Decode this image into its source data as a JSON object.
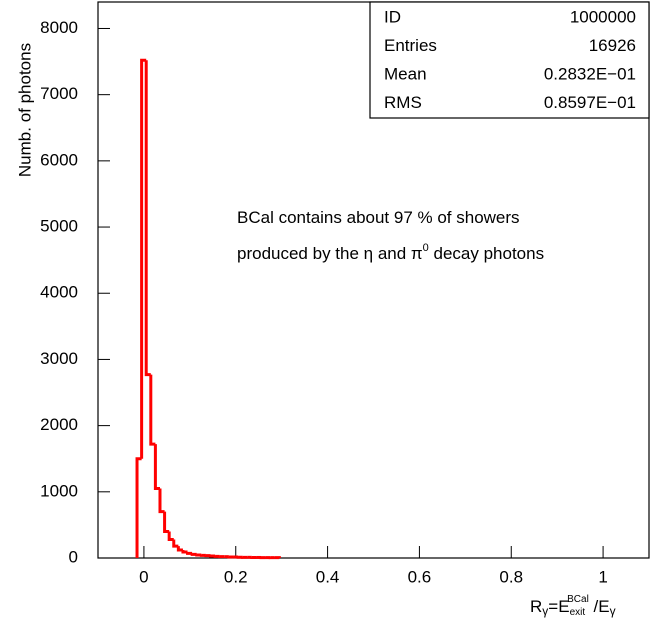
{
  "chart_data": {
    "type": "histogram",
    "ylabel": "Numb. of photons",
    "xlabel": [
      "R",
      "γ",
      "=E",
      "exit",
      "BCal",
      " /E",
      "γ"
    ],
    "annotations": [
      [
        "BCal contains about 97 % of showers"
      ],
      [
        "produced by the η and π",
        "0",
        " decay photons"
      ]
    ],
    "stats": [
      [
        "ID",
        "1000000"
      ],
      [
        "Entries",
        "16926"
      ],
      [
        "Mean",
        "0.2832E−01"
      ],
      [
        "RMS",
        "0.8597E−01"
      ]
    ],
    "bins": [
      -0.015,
      -0.005,
      0.005,
      0.015,
      0.025,
      0.035,
      0.045,
      0.055,
      0.065,
      0.075,
      0.085,
      0.095,
      0.105,
      0.115,
      0.125,
      0.135,
      0.145,
      0.155,
      0.165,
      0.175,
      0.185,
      0.195,
      0.205,
      0.215,
      0.225,
      0.235,
      0.245,
      0.255,
      0.265,
      0.275,
      0.285,
      0.295
    ],
    "counts": [
      1500,
      7520,
      2770,
      1720,
      1050,
      700,
      400,
      280,
      180,
      120,
      90,
      70,
      55,
      45,
      40,
      35,
      30,
      25,
      20,
      20,
      15,
      15,
      12,
      10,
      10,
      8,
      8,
      6,
      6,
      5,
      5
    ],
    "color": "#ff0000",
    "xlim": [
      -0.1,
      1.1
    ],
    "ylim": [
      0,
      8400
    ],
    "xticks": [
      0,
      0.2,
      0.4,
      0.6,
      0.8,
      1
    ],
    "yticks": [
      0,
      1000,
      2000,
      3000,
      4000,
      5000,
      6000,
      7000,
      8000
    ]
  }
}
